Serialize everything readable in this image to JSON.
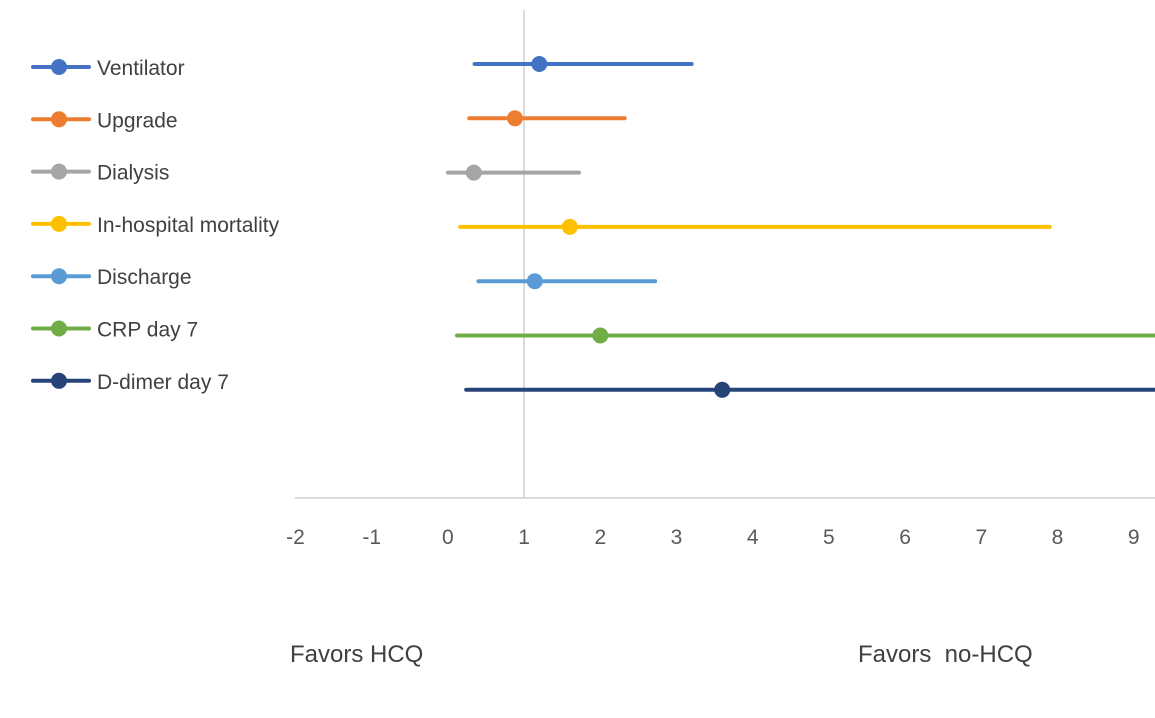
{
  "chart_data": {
    "type": "forest",
    "title": "",
    "xlabel": "",
    "ylabel": "",
    "xlim": [
      -2,
      9.3
    ],
    "xticks": [
      -2,
      -1,
      0,
      1,
      2,
      3,
      4,
      5,
      6,
      7,
      8,
      9
    ],
    "reference_line": 1,
    "grid": false,
    "legend_position": "left",
    "series": [
      {
        "name": "Ventilator",
        "estimate": 1.2,
        "lower": 0.35,
        "upper": 3.2,
        "color": "#4472C4"
      },
      {
        "name": "Upgrade",
        "estimate": 0.88,
        "lower": 0.28,
        "upper": 2.32,
        "color": "#ED7D31"
      },
      {
        "name": "Dialysis",
        "estimate": 0.34,
        "lower": 0.0,
        "upper": 1.72,
        "color": "#A5A5A5"
      },
      {
        "name": "In-hospital mortality",
        "estimate": 1.6,
        "lower": 0.16,
        "upper": 7.9,
        "color": "#FFC000"
      },
      {
        "name": "Discharge",
        "estimate": 1.14,
        "lower": 0.4,
        "upper": 2.72,
        "color": "#5B9BD5"
      },
      {
        "name": "CRP day 7",
        "estimate": 2.0,
        "lower": 0.12,
        "upper": 9.3,
        "color": "#70AD47"
      },
      {
        "name": "D-dimer day 7",
        "estimate": 3.6,
        "lower": 0.24,
        "upper": 9.3,
        "color": "#264478"
      }
    ],
    "annotations": {
      "left": "Favors HCQ",
      "right": "Favors  no-HCQ"
    }
  }
}
